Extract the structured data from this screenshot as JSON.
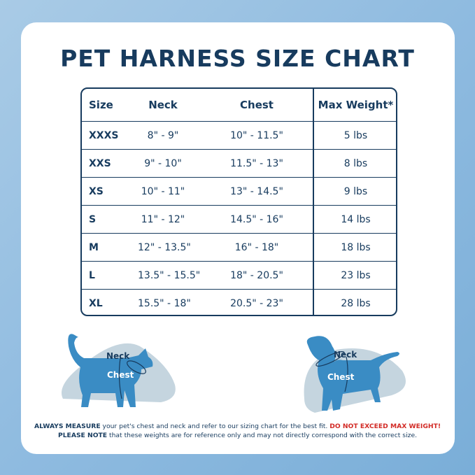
{
  "title": "PET HARNESS SIZE CHART",
  "table": {
    "headers": [
      "Size",
      "Neck",
      "Chest",
      "Max Weight*"
    ],
    "rows": [
      [
        "XXXS",
        "8\" - 9\"",
        "10\" - 11.5\"",
        "5 lbs"
      ],
      [
        "XXS",
        "9\" - 10\"",
        "11.5\" - 13\"",
        "8 lbs"
      ],
      [
        "XS",
        "10\" - 11\"",
        "13\" - 14.5\"",
        "9 lbs"
      ],
      [
        "S",
        "11\" - 12\"",
        "14.5\" - 16\"",
        "14 lbs"
      ],
      [
        "M",
        "12\" - 13.5\"",
        "16\" - 18\"",
        "18 lbs"
      ],
      [
        "L",
        "13.5\" - 15.5\"",
        "18\" - 20.5\"",
        "23 lbs"
      ],
      [
        "XL",
        "15.5\" - 18\"",
        "20.5\" - 23\"",
        "28 lbs"
      ]
    ]
  },
  "cat": {
    "neck_label": "Neck",
    "chest_label": "Chest"
  },
  "dog": {
    "neck_label": "Neck",
    "chest_label": "Chest"
  },
  "note": {
    "line1_bold": "ALWAYS MEASURE",
    "line1_text": " your pet's chest and neck and refer to our sizing chart for the best fit. ",
    "line1_warning": "DO NOT EXCEED MAX WEIGHT!",
    "line2_bold": "PLEASE NOTE",
    "line2_text": " that these weights are for reference only and may not directly correspond with the correct size."
  },
  "colors": {
    "navy": "#173b5e",
    "pet_blue": "#3a8cc4",
    "blob": "#c5d5df",
    "warning": "#d22a25"
  }
}
